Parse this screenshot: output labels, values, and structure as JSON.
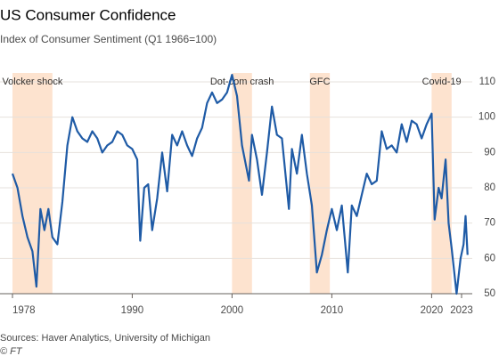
{
  "chart_data": {
    "type": "line",
    "title": "US Consumer Confidence",
    "subtitle": "Index of Consumer Sentiment (Q1 1966=100)",
    "source": "Sources: Haver Analytics, University of Michigan",
    "credit": "© FT",
    "x": [
      1978.0,
      1978.5,
      1979.0,
      1979.5,
      1980.0,
      1980.4,
      1980.8,
      1981.2,
      1981.6,
      1982.0,
      1982.5,
      1983.0,
      1983.5,
      1984.0,
      1984.5,
      1985.0,
      1985.5,
      1986.0,
      1986.5,
      1987.0,
      1987.5,
      1988.0,
      1988.5,
      1989.0,
      1989.5,
      1990.0,
      1990.5,
      1990.8,
      1991.2,
      1991.6,
      1992.0,
      1992.5,
      1993.0,
      1993.5,
      1994.0,
      1994.5,
      1995.0,
      1995.5,
      1996.0,
      1996.5,
      1997.0,
      1997.5,
      1998.0,
      1998.5,
      1999.0,
      1999.5,
      2000.0,
      2000.5,
      2001.0,
      2001.7,
      2002.0,
      2002.5,
      2003.0,
      2003.5,
      2004.0,
      2004.5,
      2005.0,
      2005.7,
      2006.0,
      2006.5,
      2007.0,
      2007.5,
      2008.0,
      2008.5,
      2009.0,
      2009.5,
      2010.0,
      2010.5,
      2011.0,
      2011.6,
      2012.0,
      2012.5,
      2013.0,
      2013.5,
      2014.0,
      2014.5,
      2015.0,
      2015.5,
      2016.0,
      2016.5,
      2017.0,
      2017.5,
      2018.0,
      2018.5,
      2019.0,
      2019.5,
      2020.0,
      2020.3,
      2020.7,
      2021.0,
      2021.4,
      2021.7,
      2022.0,
      2022.5,
      2022.9,
      2023.2,
      2023.4,
      2023.6
    ],
    "series": [
      {
        "name": "Index of Consumer Sentiment",
        "color": "#1f5ba6",
        "values": [
          84,
          80,
          72,
          66,
          62,
          52,
          74,
          68,
          74,
          66,
          64,
          76,
          92,
          100,
          96,
          94,
          93,
          96,
          94,
          90,
          92,
          93,
          96,
          95,
          92,
          91,
          88,
          65,
          80,
          81,
          68,
          77,
          90,
          79,
          95,
          92,
          96,
          92,
          89,
          94,
          97,
          104,
          107,
          104,
          105,
          107,
          112,
          106,
          92,
          82,
          95,
          88,
          78,
          90,
          103,
          95,
          94,
          74,
          91,
          84,
          95,
          84,
          75,
          56,
          61,
          68,
          74,
          68,
          75,
          56,
          75,
          72,
          78,
          84,
          81,
          82,
          96,
          91,
          92,
          90,
          98,
          93,
          99,
          98,
          94,
          98,
          101,
          71,
          80,
          77,
          88,
          70,
          63,
          50,
          60,
          64,
          72,
          61
        ]
      }
    ],
    "periods": [
      {
        "label": "Volcker shock",
        "start": 1978.0,
        "end": 1982.0
      },
      {
        "label": "Dot-com crash",
        "start": 2000.0,
        "end": 2002.0
      },
      {
        "label": "GFC",
        "start": 2007.8,
        "end": 2009.8
      },
      {
        "label": "Covid-19",
        "start": 2020.0,
        "end": 2022.0
      }
    ],
    "period_color": "#fde3cf",
    "xlim": [
      1978,
      2023
    ],
    "xticks": [
      1978,
      1990,
      2000,
      2010,
      2020,
      2023
    ],
    "ylim": [
      50,
      110
    ],
    "yticks": [
      50,
      60,
      70,
      80,
      90,
      100,
      110
    ],
    "grid": true
  }
}
